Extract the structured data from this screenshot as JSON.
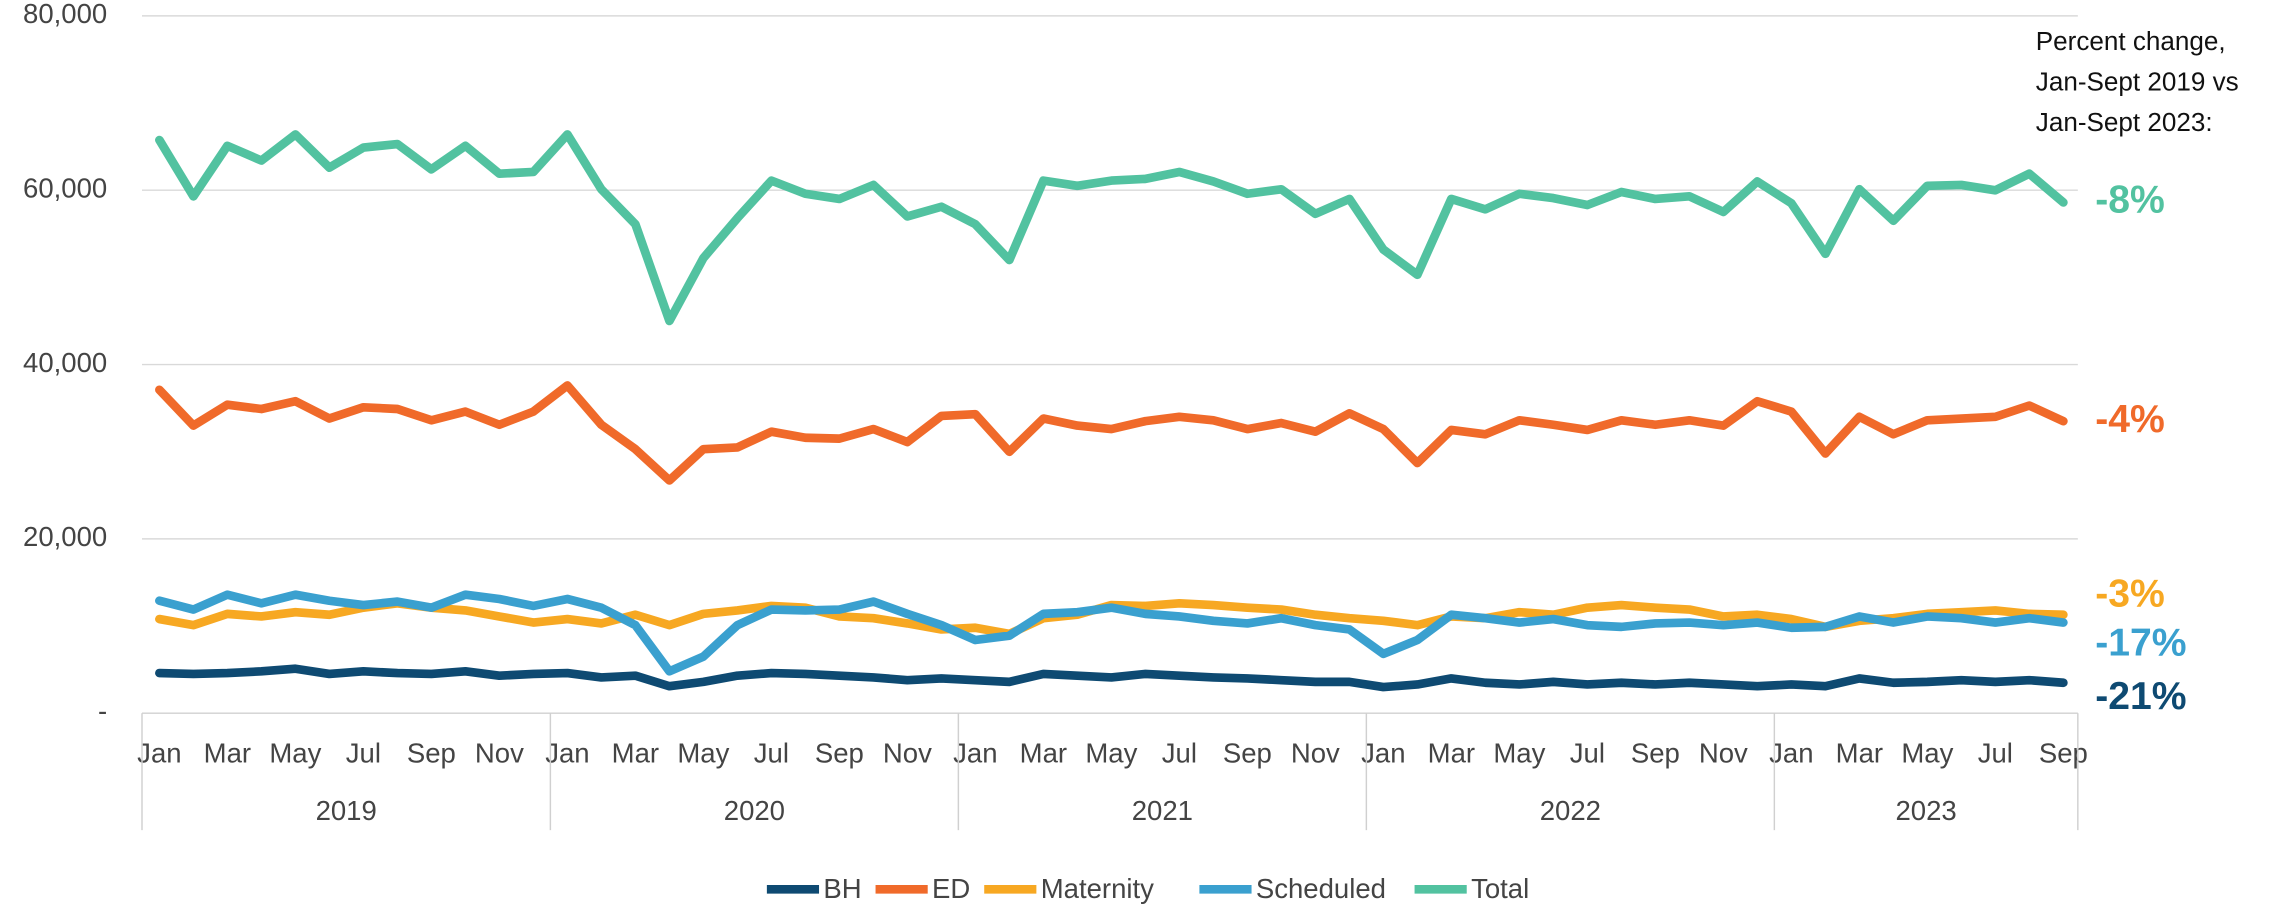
{
  "chart_data": {
    "type": "line",
    "categories": [
      "Jan",
      null,
      "Mar",
      null,
      "May",
      null,
      "Jul",
      null,
      "Sep",
      null,
      "Nov",
      null,
      "Jan",
      null,
      "Mar",
      null,
      "May",
      null,
      "Jul",
      null,
      "Sep",
      null,
      "Nov",
      null,
      "Jan",
      null,
      "Mar",
      null,
      "May",
      null,
      "Jul",
      null,
      "Sep",
      null,
      "Nov",
      null,
      "Jan",
      null,
      "Mar",
      null,
      "May",
      null,
      "Jul",
      null,
      "Sep",
      null,
      "Nov",
      null,
      "Jan",
      null,
      "Mar",
      null,
      "May",
      null,
      "Jul",
      null,
      "Sep"
    ],
    "years": [
      "2019",
      "2020",
      "2021",
      "2022",
      "2023"
    ],
    "ylim": [
      0,
      80000
    ],
    "yticks": [
      {
        "value": 0,
        "label": "-"
      },
      {
        "value": 20000,
        "label": "20,000"
      },
      {
        "value": 40000,
        "label": "40,000"
      },
      {
        "value": 60000,
        "label": "60,000"
      },
      {
        "value": 80000,
        "label": "80,000"
      }
    ],
    "grid": true,
    "legend": "bottom",
    "annotation": [
      "Percent change,",
      "Jan-Sept 2019 vs",
      "Jan-Sept 2023:"
    ],
    "series": [
      {
        "name": "BH",
        "color": "#0e4a72",
        "change_label": "-21%",
        "values": [
          4600,
          4500,
          4600,
          4800,
          5100,
          4500,
          4800,
          4600,
          4500,
          4800,
          4300,
          4500,
          4600,
          4100,
          4300,
          3100,
          3600,
          4300,
          4600,
          4500,
          4300,
          4100,
          3800,
          4000,
          3800,
          3600,
          4500,
          4300,
          4100,
          4500,
          4300,
          4100,
          4000,
          3800,
          3600,
          3600,
          3000,
          3300,
          4000,
          3500,
          3300,
          3600,
          3300,
          3500,
          3300,
          3500,
          3300,
          3100,
          3300,
          3100,
          4000,
          3500,
          3600,
          3800,
          3600,
          3800,
          3500
        ]
      },
      {
        "name": "ED",
        "color": "#f06a2a",
        "change_label": "-4%",
        "values": [
          37100,
          33000,
          35400,
          34900,
          35800,
          33800,
          35100,
          34900,
          33600,
          34600,
          33100,
          34600,
          37600,
          33100,
          30300,
          26700,
          30300,
          30500,
          32300,
          31600,
          31500,
          32600,
          31100,
          34100,
          34300,
          30000,
          33800,
          33000,
          32600,
          33500,
          34000,
          33600,
          32600,
          33300,
          32300,
          34400,
          32600,
          28700,
          32500,
          32000,
          33600,
          33100,
          32500,
          33600,
          33100,
          33600,
          33000,
          35800,
          34600,
          29800,
          34000,
          32000,
          33600,
          33800,
          34000,
          35300,
          33500
        ]
      },
      {
        "name": "Maternity",
        "color": "#f7a822",
        "change_label": "-3%",
        "values": [
          10800,
          10100,
          11400,
          11100,
          11600,
          11300,
          12100,
          12600,
          12100,
          11800,
          11100,
          10400,
          10800,
          10300,
          11300,
          10100,
          11400,
          11800,
          12300,
          12100,
          11100,
          10900,
          10300,
          9600,
          9800,
          9100,
          10900,
          11300,
          12400,
          12300,
          12600,
          12400,
          12100,
          11900,
          11300,
          10900,
          10600,
          10100,
          11100,
          10900,
          11600,
          11300,
          12100,
          12400,
          12100,
          11900,
          11100,
          11300,
          10800,
          9900,
          10600,
          10900,
          11400,
          11600,
          11800,
          11400,
          11300
        ]
      },
      {
        "name": "Scheduled",
        "color": "#3aa0cf",
        "change_label": "-17%",
        "values": [
          12900,
          11900,
          13600,
          12600,
          13600,
          12900,
          12400,
          12800,
          12100,
          13600,
          13100,
          12300,
          13100,
          12100,
          10100,
          4800,
          6500,
          10100,
          11900,
          11800,
          11900,
          12800,
          11400,
          10100,
          8400,
          8900,
          11400,
          11600,
          12100,
          11400,
          11100,
          10600,
          10300,
          10900,
          10100,
          9600,
          6800,
          8400,
          11300,
          10900,
          10400,
          10800,
          10100,
          9900,
          10300,
          10400,
          10100,
          10400,
          9800,
          9900,
          11100,
          10400,
          11100,
          10900,
          10400,
          10900,
          10400
        ]
      },
      {
        "name": "Total",
        "color": "#52c2a0",
        "change_label": "-8%",
        "values": [
          65750,
          59300,
          65100,
          63400,
          66400,
          62600,
          64900,
          65300,
          62400,
          65100,
          61900,
          62100,
          66400,
          60100,
          56100,
          45000,
          52200,
          56800,
          61100,
          59600,
          59000,
          60600,
          57000,
          58100,
          56100,
          52000,
          61100,
          60500,
          61100,
          61300,
          62100,
          61000,
          59600,
          60100,
          57300,
          59000,
          53200,
          50300,
          59000,
          57800,
          59600,
          59100,
          58300,
          59800,
          59000,
          59300,
          57500,
          61000,
          58500,
          52700,
          60100,
          56500,
          60500,
          60600,
          60000,
          61900,
          58600
        ]
      }
    ]
  }
}
